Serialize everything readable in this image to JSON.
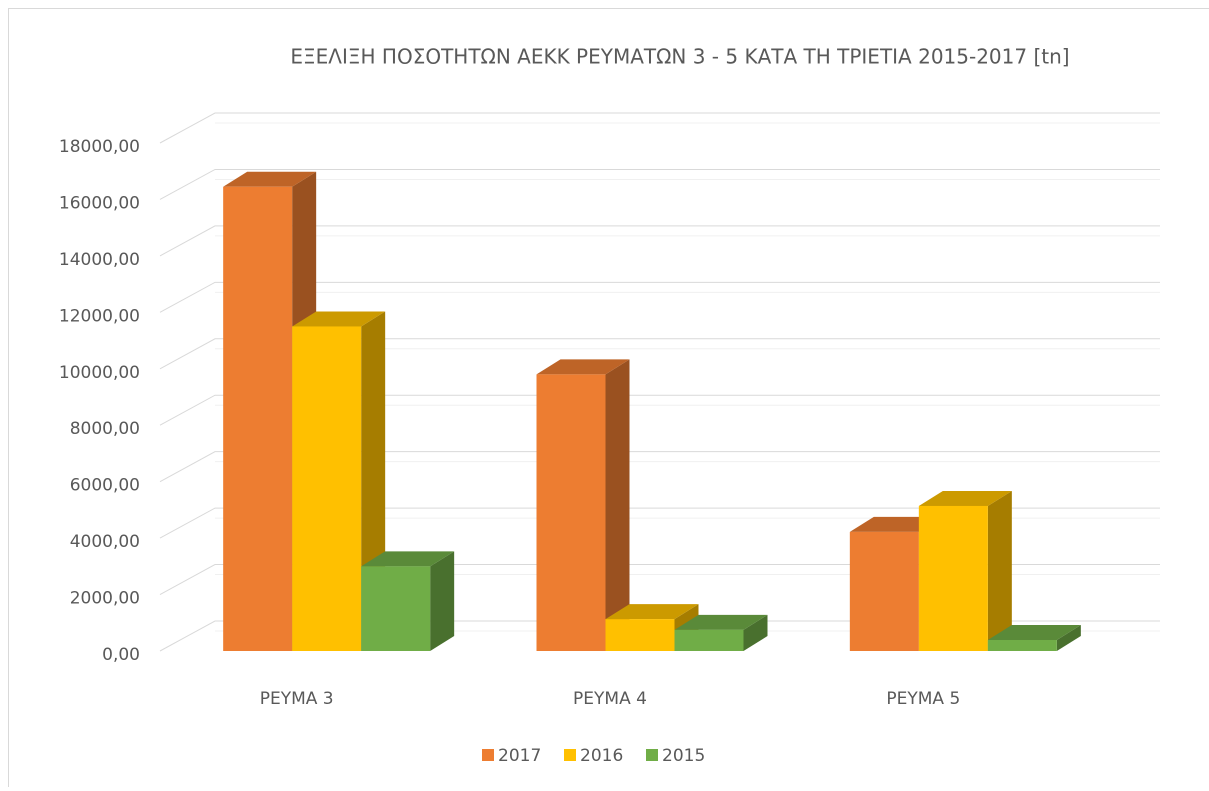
{
  "chart_data": {
    "type": "bar3d",
    "title": "ΕΞΕΛΙΞΗ ΠΟΣΟΤΗΤΩΝ ΑΕΚΚ ΡΕΥΜΑΤΩΝ 3 - 5  ΚΑΤΑ ΤΗ ΤΡΙΕΤΙΑ 2015-2017 [tn]",
    "categories": [
      "ΡΕΥΜΑ 3",
      "ΡΕΥΜΑ 4",
      "ΡΕΥΜΑ 5"
    ],
    "series": [
      {
        "name": "2017",
        "color": "#ed7d31",
        "values": [
          16450,
          9800,
          4220
        ]
      },
      {
        "name": "2016",
        "color": "#ffc000",
        "values": [
          11500,
          1130,
          5140
        ]
      },
      {
        "name": "2015",
        "color": "#70ad47",
        "values": [
          3000,
          750,
          390
        ]
      }
    ],
    "ylim": [
      0,
      18000
    ],
    "yticks": [
      {
        "value": 0,
        "label": "0,00"
      },
      {
        "value": 2000,
        "label": "2000,00"
      },
      {
        "value": 4000,
        "label": "4000,00"
      },
      {
        "value": 6000,
        "label": "6000,00"
      },
      {
        "value": 8000,
        "label": "8000,00"
      },
      {
        "value": 10000,
        "label": "10000,00"
      },
      {
        "value": 12000,
        "label": "12000,00"
      },
      {
        "value": 14000,
        "label": "14000,00"
      },
      {
        "value": 16000,
        "label": "16000,00"
      },
      {
        "value": 18000,
        "label": "18000,00"
      }
    ],
    "grid": true,
    "legend": "bottom"
  }
}
